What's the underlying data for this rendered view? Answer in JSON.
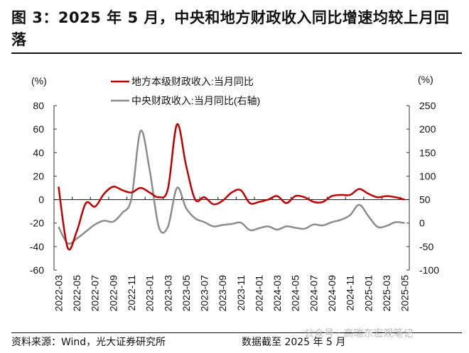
{
  "title": "图 3：2025 年 5 月，中央和地方财政收入同比增速均较上月回落",
  "footer": {
    "source": "资料来源：Wind，光大证券研究所",
    "as_of": "数据截至 2025 年 5 月",
    "watermark": "公众号 · 高瑞东宏观笔记"
  },
  "chart_data": {
    "type": "line",
    "left_axis": {
      "unit": "(%)",
      "range": [
        -60,
        80
      ],
      "ticks": [
        80,
        60,
        40,
        20,
        0,
        -20,
        -40,
        -60
      ]
    },
    "right_axis": {
      "unit": "(%)",
      "range": [
        -100,
        250
      ],
      "ticks": [
        250,
        200,
        150,
        100,
        50,
        0,
        -50,
        -100
      ]
    },
    "x_tick_labels": [
      "2022-03",
      "2022-05",
      "2022-07",
      "2022-09",
      "2022-11",
      "2023-01",
      "2023-03",
      "2023-05",
      "2023-07",
      "2023-09",
      "2023-11",
      "2024-01",
      "2024-03",
      "2024-05",
      "2024-07",
      "2024-09",
      "2024-11",
      "2025-01",
      "2025-03",
      "2025-05"
    ],
    "x": [
      "2022-03",
      "2022-04",
      "2022-05",
      "2022-06",
      "2022-07",
      "2022-08",
      "2022-09",
      "2022-10",
      "2022-11",
      "2022-12",
      "2023-01",
      "2023-02",
      "2023-03",
      "2023-04",
      "2023-05",
      "2023-06",
      "2023-07",
      "2023-08",
      "2023-09",
      "2023-10",
      "2023-11",
      "2023-12",
      "2024-01",
      "2024-02",
      "2024-03",
      "2024-04",
      "2024-05",
      "2024-06",
      "2024-07",
      "2024-08",
      "2024-09",
      "2024-10",
      "2024-11",
      "2024-12",
      "2025-01",
      "2025-02",
      "2025-03",
      "2025-04",
      "2025-05"
    ],
    "series": [
      {
        "name": "地方本级财政收入:当月同比",
        "axis": "left",
        "color": "#c00000",
        "values": [
          11,
          -41,
          -27,
          -3,
          -6,
          5,
          11,
          8,
          6,
          10,
          6,
          2,
          9,
          64,
          29,
          0,
          2,
          -4,
          -1,
          6,
          8,
          -3,
          -2,
          0,
          3,
          -3,
          3,
          2,
          -2,
          -2,
          3,
          4,
          4,
          9,
          5,
          2,
          3,
          2,
          0
        ]
      },
      {
        "name": "中央财政收入:当月同比(右轴)",
        "axis": "right",
        "color": "#8c8c8c",
        "values": [
          -8,
          -43,
          -33,
          -18,
          -3,
          5,
          3,
          22,
          52,
          196,
          113,
          -8,
          -8,
          75,
          32,
          10,
          2,
          -7,
          -4,
          -2,
          1,
          -15,
          -11,
          -7,
          -14,
          -7,
          -10,
          -12,
          -3,
          -5,
          2,
          7,
          17,
          39,
          15,
          -8,
          -6,
          2,
          0
        ]
      }
    ],
    "legend_placement": "top-center",
    "grid": false
  }
}
